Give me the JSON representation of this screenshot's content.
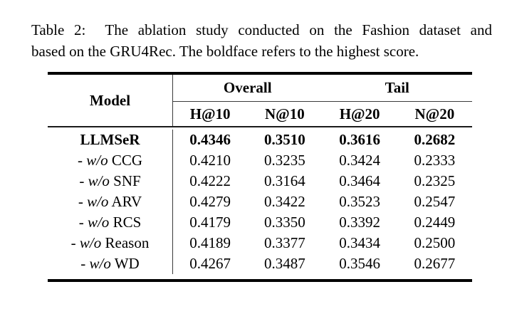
{
  "caption": {
    "line1": "Table 2:  The ablation study conducted on the Fashion dataset and",
    "line2": "based on the GRU4Rec. The boldface refers to the highest score."
  },
  "table": {
    "model_header": "Model",
    "groups": [
      {
        "label": "Overall"
      },
      {
        "label": "Tail"
      }
    ],
    "sub_headers": [
      "H@10",
      "N@10",
      "H@20",
      "N@20"
    ],
    "rows": [
      {
        "dash": "",
        "wo": "",
        "name": "LLMSeR",
        "bold": true,
        "values": [
          "0.4346",
          "0.3510",
          "0.3616",
          "0.2682"
        ]
      },
      {
        "dash": "- ",
        "wo": "w/o",
        "name": " CCG",
        "bold": false,
        "values": [
          "0.4210",
          "0.3235",
          "0.3424",
          "0.2333"
        ]
      },
      {
        "dash": "- ",
        "wo": "w/o",
        "name": " SNF",
        "bold": false,
        "values": [
          "0.4222",
          "0.3164",
          "0.3464",
          "0.2325"
        ]
      },
      {
        "dash": "- ",
        "wo": "w/o",
        "name": " ARV",
        "bold": false,
        "values": [
          "0.4279",
          "0.3422",
          "0.3523",
          "0.2547"
        ]
      },
      {
        "dash": "- ",
        "wo": "w/o",
        "name": " RCS",
        "bold": false,
        "values": [
          "0.4179",
          "0.3350",
          "0.3392",
          "0.2449"
        ]
      },
      {
        "dash": "- ",
        "wo": "w/o",
        "name": " Reason",
        "bold": false,
        "values": [
          "0.4189",
          "0.3377",
          "0.3434",
          "0.2500"
        ]
      },
      {
        "dash": "- ",
        "wo": "w/o",
        "name": " WD",
        "bold": false,
        "values": [
          "0.4267",
          "0.3487",
          "0.3546",
          "0.2677"
        ]
      }
    ]
  }
}
